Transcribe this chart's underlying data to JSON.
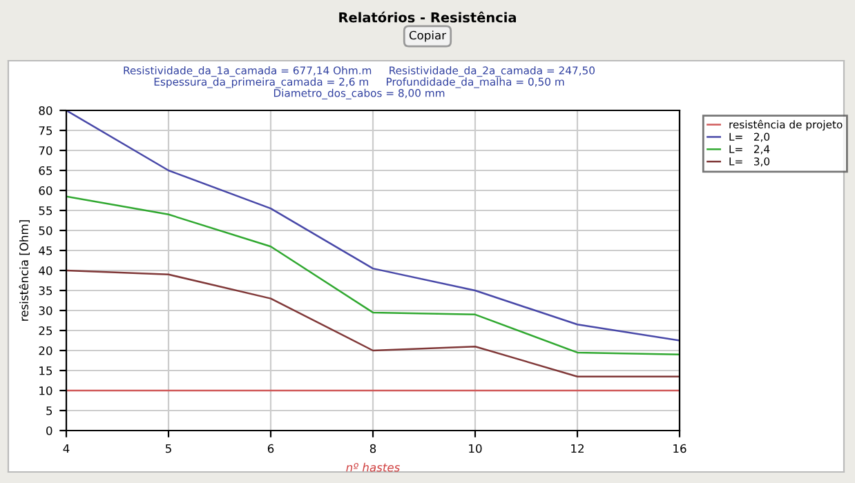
{
  "chart_data": {
    "type": "line",
    "title": "Relatórios - Resistência",
    "subtitle": "Resistividade_da_1a_camada = 677,14 Ohm.m     Resistividade_da_2a_camada = 247,50\nEspessura_da_primeira_camada = 2,6 m     Profundidade_da_malha = 0,50 m\nDiametro_dos_cabos = 8,00 mm",
    "annotations": [
      "Copiar"
    ],
    "xlabel": "nº hastes",
    "ylabel": "resistência [Ohm]",
    "categories": [
      "4",
      "5",
      "6",
      "8",
      "10",
      "12",
      "16"
    ],
    "series": [
      {
        "name": "resistência de projeto",
        "color": "#d05a5a",
        "values": [
          10,
          10,
          10,
          10,
          10,
          10,
          10
        ]
      },
      {
        "name": "L=   2,0",
        "color": "#4848a8",
        "values": [
          80,
          65,
          55.5,
          40.5,
          35,
          26.5,
          22.5
        ]
      },
      {
        "name": "L=   2,4",
        "color": "#30a830",
        "values": [
          58.5,
          54,
          46,
          29.5,
          29,
          19.5,
          19
        ]
      },
      {
        "name": "L=   3,0",
        "color": "#803838",
        "values": [
          40,
          39,
          33,
          20,
          21,
          13.5,
          13.5
        ]
      }
    ],
    "ylim": [
      0,
      80
    ],
    "yticks": [
      0,
      5,
      10,
      15,
      20,
      25,
      30,
      35,
      40,
      45,
      50,
      55,
      60,
      65,
      70,
      75,
      80
    ],
    "grid": true,
    "legend": "top right",
    "marker": "none",
    "line_style": "solid"
  }
}
